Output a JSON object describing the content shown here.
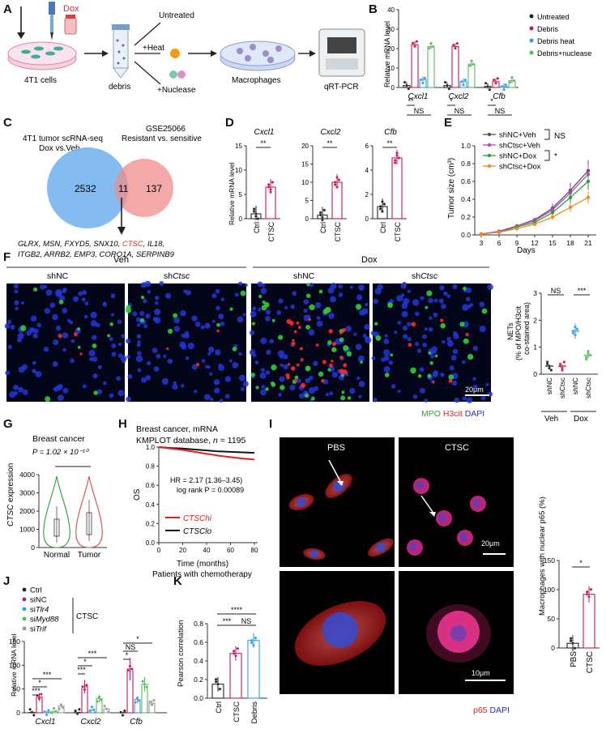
{
  "panel_labels": {
    "A": "A",
    "B": "B",
    "C": "C",
    "D": "D",
    "E": "E",
    "F": "F",
    "G": "G",
    "H": "H",
    "I": "I",
    "J": "J",
    "K": "K"
  },
  "panelA": {
    "dox": "Dox",
    "cells": "4T1 cells",
    "debris": "debris",
    "untreated": "Untreated",
    "heat": "+Heat",
    "nuclease": "+Nuclease",
    "macrophages": "Macrophages",
    "qrtpcr": "qRT-PCR"
  },
  "panelB": {
    "ylabel": "Relative mRNA level",
    "genes": [
      "Cxcl1",
      "Cxcl2",
      "Cfb"
    ],
    "legend": [
      "Untreated",
      "Debris",
      "Debris heat",
      "Debris+nuclease"
    ],
    "colors": [
      "#222222",
      "#c2185b",
      "#2e9ee6",
      "#5cb85c"
    ],
    "chart_data": {
      "type": "bar",
      "categories": [
        "Cxcl1",
        "Cxcl2",
        "Cfb"
      ],
      "ylim": [
        0,
        40
      ],
      "yticks": [
        "0",
        "10",
        "20",
        "30",
        "40"
      ],
      "series": [
        {
          "name": "Untreated",
          "values": [
            1,
            1,
            0.5
          ]
        },
        {
          "name": "Debris",
          "values": [
            22,
            21,
            3
          ]
        },
        {
          "name": "Debris heat",
          "values": [
            4,
            3,
            0.5
          ]
        },
        {
          "name": "Debris+nuclease",
          "values": [
            21,
            12,
            3.5
          ]
        }
      ]
    },
    "sig": [
      "**",
      "NS",
      "*",
      "NS",
      "*",
      "NS"
    ]
  },
  "panelC": {
    "left_title1": "4T1 tumor scRNA-seq",
    "left_title2": "Dox vs.Veh",
    "right_title1": "GSE25066",
    "right_title2": "Resistant vs. sensitive",
    "left_n": "2532",
    "overlap_n": "11",
    "right_n": "137",
    "genes_line1a": "GLRX, MSN, FXYD5, SNX10, ",
    "genes_ctsc": "CTSC",
    "genes_line1b": ", IL18,",
    "genes_line2": "ITGB2, ARRB2, EMP3, CORO1A, SERPINB9"
  },
  "panelD": {
    "ylabel": "Relative mRNA level",
    "charts": [
      {
        "title": "Cxcl1",
        "yticks": [
          "0",
          "5",
          "10",
          "15"
        ],
        "ymax": 15,
        "values": [
          1,
          6.5
        ],
        "sig": "**"
      },
      {
        "title": "Cxcl2",
        "yticks": [
          "0",
          "5",
          "10",
          "15",
          "20"
        ],
        "ymax": 20,
        "values": [
          1,
          10
        ],
        "sig": "**"
      },
      {
        "title": "Cfb",
        "yticks": [
          "0",
          "2",
          "4",
          "6"
        ],
        "ymax": 6,
        "values": [
          1,
          5
        ],
        "sig": "**"
      }
    ],
    "xlabels": [
      "Ctrl",
      "CTSC"
    ]
  },
  "panelE": {
    "ylabel": "Tumor size (cm³)",
    "xlabel": "Days",
    "xticks": [
      "3",
      "6",
      "9",
      "12",
      "15",
      "18",
      "21"
    ],
    "yticks": [
      "0.0",
      "0.2",
      "0.4",
      "0.6",
      "0.8",
      "1.0"
    ],
    "legend": [
      "shNC+Veh",
      "shCtsc+Veh",
      "shNC+Dox",
      "shCtsc+Dox"
    ],
    "sig1": "NS",
    "sig2": "*",
    "chart_data": {
      "type": "line",
      "x": [
        3,
        6,
        9,
        12,
        15,
        18,
        21
      ],
      "ylim": [
        0,
        1.0
      ],
      "series": [
        {
          "name": "shNC+Veh",
          "values": [
            0.01,
            0.04,
            0.1,
            0.17,
            0.3,
            0.5,
            0.72
          ]
        },
        {
          "name": "shCtsc+Veh",
          "values": [
            0.01,
            0.04,
            0.1,
            0.16,
            0.28,
            0.47,
            0.68
          ]
        },
        {
          "name": "shNC+Dox",
          "values": [
            0.01,
            0.03,
            0.09,
            0.14,
            0.25,
            0.42,
            0.6
          ]
        },
        {
          "name": "shCtsc+Dox",
          "values": [
            0.01,
            0.03,
            0.07,
            0.12,
            0.2,
            0.31,
            0.42
          ]
        }
      ],
      "colors": [
        "#555555",
        "#c03fd0",
        "#2a9d3a",
        "#f08a24"
      ]
    }
  },
  "panelF": {
    "veh": "Veh",
    "dox": "Dox",
    "shnc": "shNC",
    "shctsc": "shCtsc",
    "scale": "20μm",
    "mpo": "MPO",
    "h3cit": "H3cit",
    "dapi": "DAPI",
    "ylabel1": "NETs",
    "ylabel2": "(% of MPO/H3cit",
    "ylabel3": "co-stained area)",
    "yticks": [
      "0",
      "1",
      "2",
      "3"
    ],
    "xlabels": [
      "shNC",
      "shCtsc",
      "shNC",
      "shCtsc"
    ],
    "sig1": "NS",
    "sig2": "***",
    "chart_data": {
      "type": "bar",
      "categories": [
        "Veh shNC",
        "Veh shCtsc",
        "Dox shNC",
        "Dox shCtsc"
      ],
      "values": [
        0.3,
        0.3,
        1.6,
        0.7
      ],
      "ylim": [
        0,
        3
      ]
    }
  },
  "panelG": {
    "title": "Breast cancer",
    "pval": "P = 1.02 × 10⁻¹⁰",
    "ylabel": "CTSC expression",
    "yticks": [
      "0",
      "1000",
      "2000",
      "3000",
      "4000"
    ],
    "xlabels": [
      "Normal",
      "Tumor"
    ]
  },
  "panelH": {
    "title1": "Breast cancer, mRNA",
    "title2": "KMPLOT database, n = 1195",
    "hr": "HR = 2.17 (1.36–3.45)",
    "logrank": "log rank P = 0.00089",
    "ylabel": "OS",
    "xlabel1": "Time (months)",
    "xlabel2": "Patients with chemotherapy",
    "yticks": [
      "0.0",
      "0.2",
      "0.4",
      "0.6",
      "0.8",
      "1.0"
    ],
    "xticks": [
      "0",
      "20",
      "40",
      "60",
      "80"
    ],
    "legend_hi": "CTSChi",
    "legend_lo": "CTSClo"
  },
  "panelI": {
    "pbs": "PBS",
    "ctsc": "CTSC",
    "scale1": "20μm",
    "scale2": "10μm",
    "p65": "p65",
    "dapi": "DAPI",
    "ylabel": "Macrophages with nuclear p65 (%)",
    "yticks": [
      "0",
      "50",
      "100",
      "150"
    ],
    "xlabels": [
      "PBS",
      "CTSC"
    ],
    "sig": "*",
    "chart_data": {
      "type": "bar",
      "categories": [
        "PBS",
        "CTSC"
      ],
      "values": [
        8,
        92
      ],
      "ylim": [
        0,
        150
      ]
    }
  },
  "panelJ": {
    "ylabel": "Relative mRNA level",
    "yticks": [
      "0",
      "50",
      "100",
      "150"
    ],
    "genes": [
      "Cxcl1",
      "Cxcl2",
      "Cfb"
    ],
    "legend": [
      "Ctrl",
      "siNC",
      "siTlr4",
      "siMyd88",
      "siTrif"
    ],
    "ctsc": "CTSC",
    "colors": [
      "#222222",
      "#c2185b",
      "#2e9ee6",
      "#5cb85c",
      "#999999"
    ],
    "chart_data": {
      "type": "bar",
      "categories": [
        "Cxcl1",
        "Cxcl2",
        "Cfb"
      ],
      "ylim": [
        0,
        150
      ],
      "series": [
        {
          "name": "Ctrl",
          "values": [
            1,
            1,
            1
          ]
        },
        {
          "name": "siNC",
          "values": [
            33,
            55,
            92
          ]
        },
        {
          "name": "siTlr4",
          "values": [
            2,
            6,
            28
          ]
        },
        {
          "name": "siMyd88",
          "values": [
            3,
            30,
            60
          ]
        },
        {
          "name": "siTrif",
          "values": [
            14,
            8,
            20
          ]
        }
      ]
    }
  },
  "panelK": {
    "ylabel": "Pearson correlation",
    "yticks": [
      "0.0",
      "0.2",
      "0.4",
      "0.6",
      "0.8"
    ],
    "xlabels": [
      "Ctrl",
      "CTSC",
      "Debris"
    ],
    "sig": [
      "****",
      "***",
      "NS"
    ],
    "chart_data": {
      "type": "bar",
      "categories": [
        "Ctrl",
        "CTSC",
        "Debris"
      ],
      "values": [
        0.15,
        0.48,
        0.62
      ],
      "ylim": [
        0,
        0.8
      ]
    }
  }
}
